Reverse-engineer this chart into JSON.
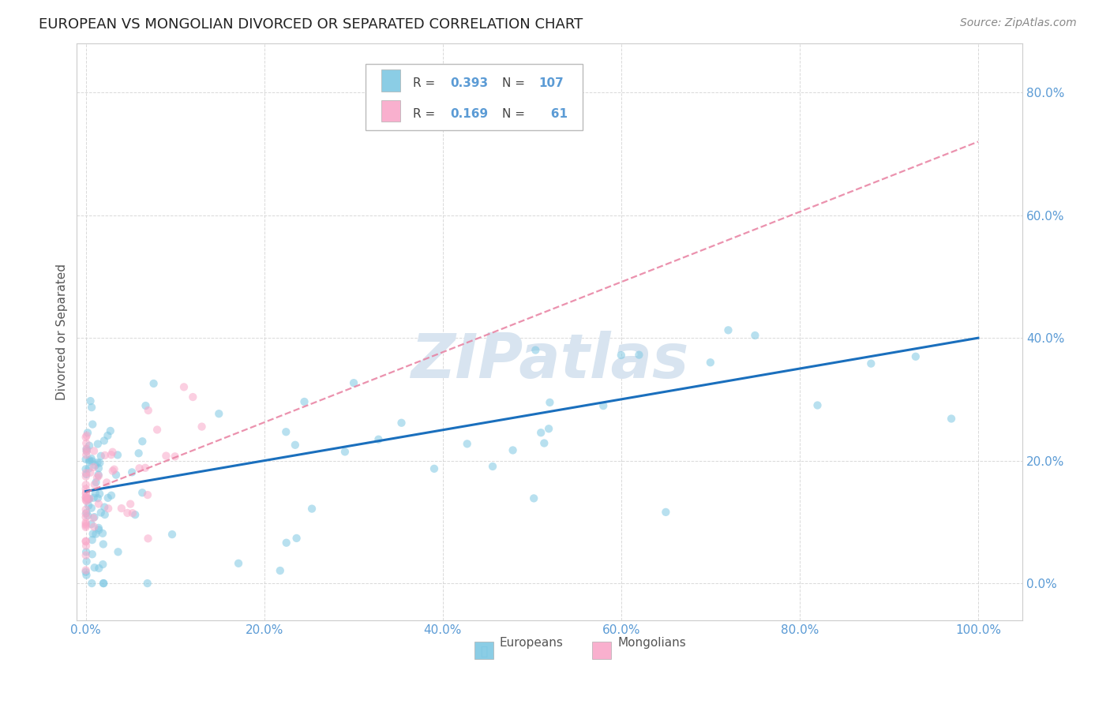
{
  "title": "EUROPEAN VS MONGOLIAN DIVORCED OR SEPARATED CORRELATION CHART",
  "source": "Source: ZipAtlas.com",
  "ylabel": "Divorced or Separated",
  "x_tick_vals": [
    0.0,
    0.2,
    0.4,
    0.6,
    0.8,
    1.0
  ],
  "y_tick_vals": [
    0.0,
    0.2,
    0.4,
    0.6,
    0.8
  ],
  "x_min": -0.01,
  "x_max": 1.05,
  "y_min": -0.06,
  "y_max": 0.88,
  "legend_r_european": "0.393",
  "legend_n_european": "107",
  "legend_r_mongolian": "0.169",
  "legend_n_mongolian": "61",
  "european_color": "#7ec8e3",
  "mongolian_color": "#f9a8c9",
  "regression_european_color": "#1a6fbd",
  "regression_mongolian_color": "#e87fa0",
  "watermark_text": "ZIPatlas",
  "watermark_color": "#d8e4f0",
  "background_color": "#ffffff",
  "grid_color": "#d0d0d0",
  "title_fontsize": 13,
  "source_fontsize": 10,
  "tick_color": "#5b9bd5",
  "axis_label_color": "#555555",
  "scatter_size": 55,
  "scatter_alpha": 0.55,
  "eu_regression_start_x": 0.0,
  "eu_regression_start_y": 0.15,
  "eu_regression_end_x": 1.0,
  "eu_regression_end_y": 0.4,
  "mn_regression_start_x": 0.0,
  "mn_regression_start_y": 0.148,
  "mn_regression_end_x": 1.0,
  "mn_regression_end_y": 0.72
}
